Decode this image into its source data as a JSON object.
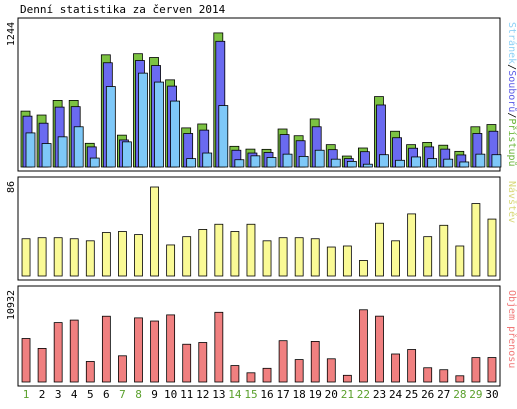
{
  "title": "Denní statistika za červen 2014",
  "chart_data": [
    {
      "type": "bar",
      "panel": "top",
      "ymax_label": "1244",
      "ylim": [
        0,
        1244
      ],
      "legend": [
        {
          "text": "Stránek",
          "color": "#8dd0f5"
        },
        {
          "text": "/",
          "color": "#000000"
        },
        {
          "text": "Souborů",
          "color": "#5c5ce6"
        },
        {
          "text": "/",
          "color": "#000000"
        },
        {
          "text": "Přístupů",
          "color": "#6db63c"
        }
      ],
      "categories": [
        "1",
        "2",
        "3",
        "4",
        "5",
        "6",
        "7",
        "8",
        "9",
        "10",
        "11",
        "12",
        "13",
        "14",
        "15",
        "16",
        "17",
        "18",
        "19",
        "20",
        "21",
        "22",
        "23",
        "24",
        "25",
        "26",
        "27",
        "28",
        "29",
        "30"
      ],
      "series": [
        {
          "name": "Přístupů",
          "color": "#7cc242",
          "values": [
            500,
            465,
            596,
            596,
            212,
            1004,
            285,
            1014,
            980,
            780,
            350,
            385,
            1200,
            185,
            160,
            158,
            340,
            280,
            430,
            200,
            98,
            170,
            630,
            320,
            200,
            220,
            195,
            140,
            360,
            380
          ]
        },
        {
          "name": "Souborů",
          "color": "#6a6af0",
          "values": [
            455,
            392,
            536,
            540,
            180,
            933,
            242,
            953,
            908,
            724,
            300,
            330,
            1125,
            150,
            125,
            130,
            290,
            235,
            360,
            155,
            75,
            137,
            555,
            262,
            168,
            180,
            160,
            108,
            300,
            320
          ]
        },
        {
          "name": "Stránek",
          "color": "#7ec8f8",
          "values": [
            305,
            210,
            270,
            360,
            80,
            720,
            225,
            840,
            760,
            590,
            75,
            125,
            550,
            65,
            100,
            85,
            115,
            95,
            150,
            70,
            50,
            25,
            110,
            60,
            90,
            75,
            70,
            45,
            115,
            110
          ]
        }
      ]
    },
    {
      "type": "bar",
      "panel": "middle",
      "ymax_label": "86",
      "ylim": [
        0,
        86
      ],
      "legend": [
        {
          "text": "Návštěv",
          "color": "#d8d878"
        }
      ],
      "categories": [
        "1",
        "2",
        "3",
        "4",
        "5",
        "6",
        "7",
        "8",
        "9",
        "10",
        "11",
        "12",
        "13",
        "14",
        "15",
        "16",
        "17",
        "18",
        "19",
        "20",
        "21",
        "22",
        "23",
        "24",
        "25",
        "26",
        "27",
        "28",
        "29",
        "30"
      ],
      "series": [
        {
          "name": "Návštěv",
          "color": "#fafa96",
          "values": [
            36,
            37,
            37,
            36,
            34,
            42,
            43,
            40,
            86,
            30,
            38,
            45,
            50,
            43,
            50,
            34,
            37,
            37,
            36,
            28,
            29,
            15,
            51,
            34,
            60,
            38,
            49,
            29,
            70,
            55
          ]
        }
      ]
    },
    {
      "type": "bar",
      "panel": "bottom",
      "ymax_label": "10932",
      "ylim": [
        0,
        10932
      ],
      "legend": [
        {
          "text": "Objem přenosu",
          "color": "#f07878"
        }
      ],
      "categories": [
        "1",
        "2",
        "3",
        "4",
        "5",
        "6",
        "7",
        "8",
        "9",
        "10",
        "11",
        "12",
        "13",
        "14",
        "15",
        "16",
        "17",
        "18",
        "19",
        "20",
        "21",
        "22",
        "23",
        "24",
        "25",
        "26",
        "27",
        "28",
        "29",
        "30"
      ],
      "series": [
        {
          "name": "Objem přenosu",
          "color": "#f08080",
          "values": [
            5530,
            4270,
            7550,
            7870,
            2610,
            8360,
            3330,
            8150,
            7750,
            8530,
            4800,
            5020,
            8860,
            2090,
            1170,
            1740,
            5250,
            2850,
            5160,
            2950,
            850,
            9180,
            8370,
            3560,
            4130,
            1810,
            1560,
            790,
            3100,
            3110
          ]
        }
      ]
    }
  ],
  "x_label_colors": {
    "weekday": "#000000",
    "weekend": "#5aa02c"
  },
  "weekend_days": [
    "1",
    "7",
    "8",
    "14",
    "15",
    "21",
    "22",
    "28",
    "29"
  ]
}
